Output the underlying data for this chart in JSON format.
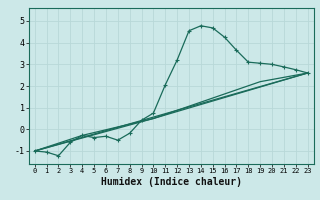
{
  "title": "",
  "xlabel": "Humidex (Indice chaleur)",
  "xlim": [
    -0.5,
    23.5
  ],
  "ylim": [
    -1.6,
    5.6
  ],
  "xticks": [
    0,
    1,
    2,
    3,
    4,
    5,
    6,
    7,
    8,
    9,
    10,
    11,
    12,
    13,
    14,
    15,
    16,
    17,
    18,
    19,
    20,
    21,
    22,
    23
  ],
  "yticks": [
    -1,
    0,
    1,
    2,
    3,
    4,
    5
  ],
  "background_color": "#cce8e8",
  "grid_color": "#b8d8d8",
  "line_color": "#1a6b5a",
  "line1": {
    "x": [
      0,
      1,
      2,
      3,
      4,
      5,
      6,
      7,
      8,
      9,
      10,
      11,
      12,
      13,
      14,
      15,
      16,
      17,
      18,
      19,
      20,
      21,
      22,
      23
    ],
    "y": [
      -1.0,
      -1.05,
      -1.22,
      -0.6,
      -0.28,
      -0.38,
      -0.32,
      -0.5,
      -0.18,
      0.42,
      0.75,
      2.05,
      3.2,
      4.55,
      4.78,
      4.68,
      4.25,
      3.65,
      3.1,
      3.05,
      3.0,
      2.88,
      2.75,
      2.6
    ]
  },
  "line2": {
    "x": [
      0,
      23
    ],
    "y": [
      -1.0,
      2.6
    ]
  },
  "line3": {
    "x": [
      0,
      10,
      23
    ],
    "y": [
      -1.0,
      0.5,
      2.6
    ]
  },
  "line4": {
    "x": [
      0,
      4,
      10,
      19,
      23
    ],
    "y": [
      -1.0,
      -0.28,
      0.5,
      2.2,
      2.6
    ]
  }
}
